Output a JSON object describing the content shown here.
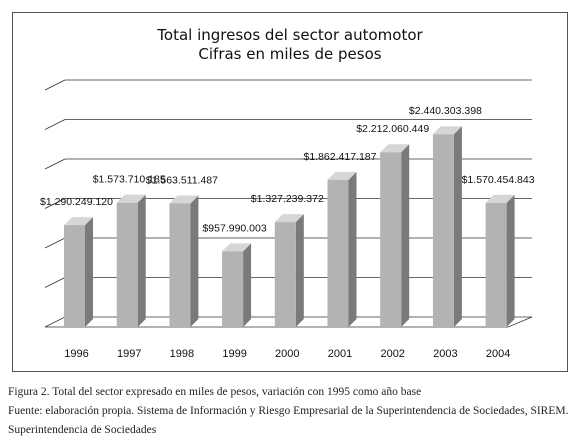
{
  "chart_data": {
    "type": "bar",
    "title": "Total ingresos del sector automotor",
    "subtitle": "Cifras en miles de pesos",
    "categories": [
      "1996",
      "1997",
      "1998",
      "1999",
      "2000",
      "2001",
      "2002",
      "2003",
      "2004"
    ],
    "values": [
      1290249120,
      1573710185,
      1563511487,
      957990003,
      1327239372,
      1862417187,
      2212060449,
      2440303398,
      1570454843
    ],
    "data_labels": [
      "$1.290.249.120",
      "$1.573.710.185",
      "$1.563.511.487",
      "$957.990.003",
      "$1.327.239.372",
      "$1.862.417.187",
      "$2.212.060.449",
      "$2.440.303.398",
      "$1.570.454.843"
    ],
    "ylim": [
      0,
      3000000000
    ],
    "grid": true,
    "style": "3d",
    "colors": {
      "bar_front": "#b3b3b3",
      "bar_side": "#7a7a7a",
      "bar_top": "#d6d6d6",
      "grid": "#333333"
    }
  },
  "captions": {
    "line1": "Figura 2. Total del sector expresado en miles de pesos, variación con 1995 como año base",
    "line2": "Fuente: elaboración propia. Sistema de Información y Riesgo Empresarial de la Superintendencia de Sociedades, SIREM.",
    "line3": "Superintendencia de Sociedades"
  }
}
